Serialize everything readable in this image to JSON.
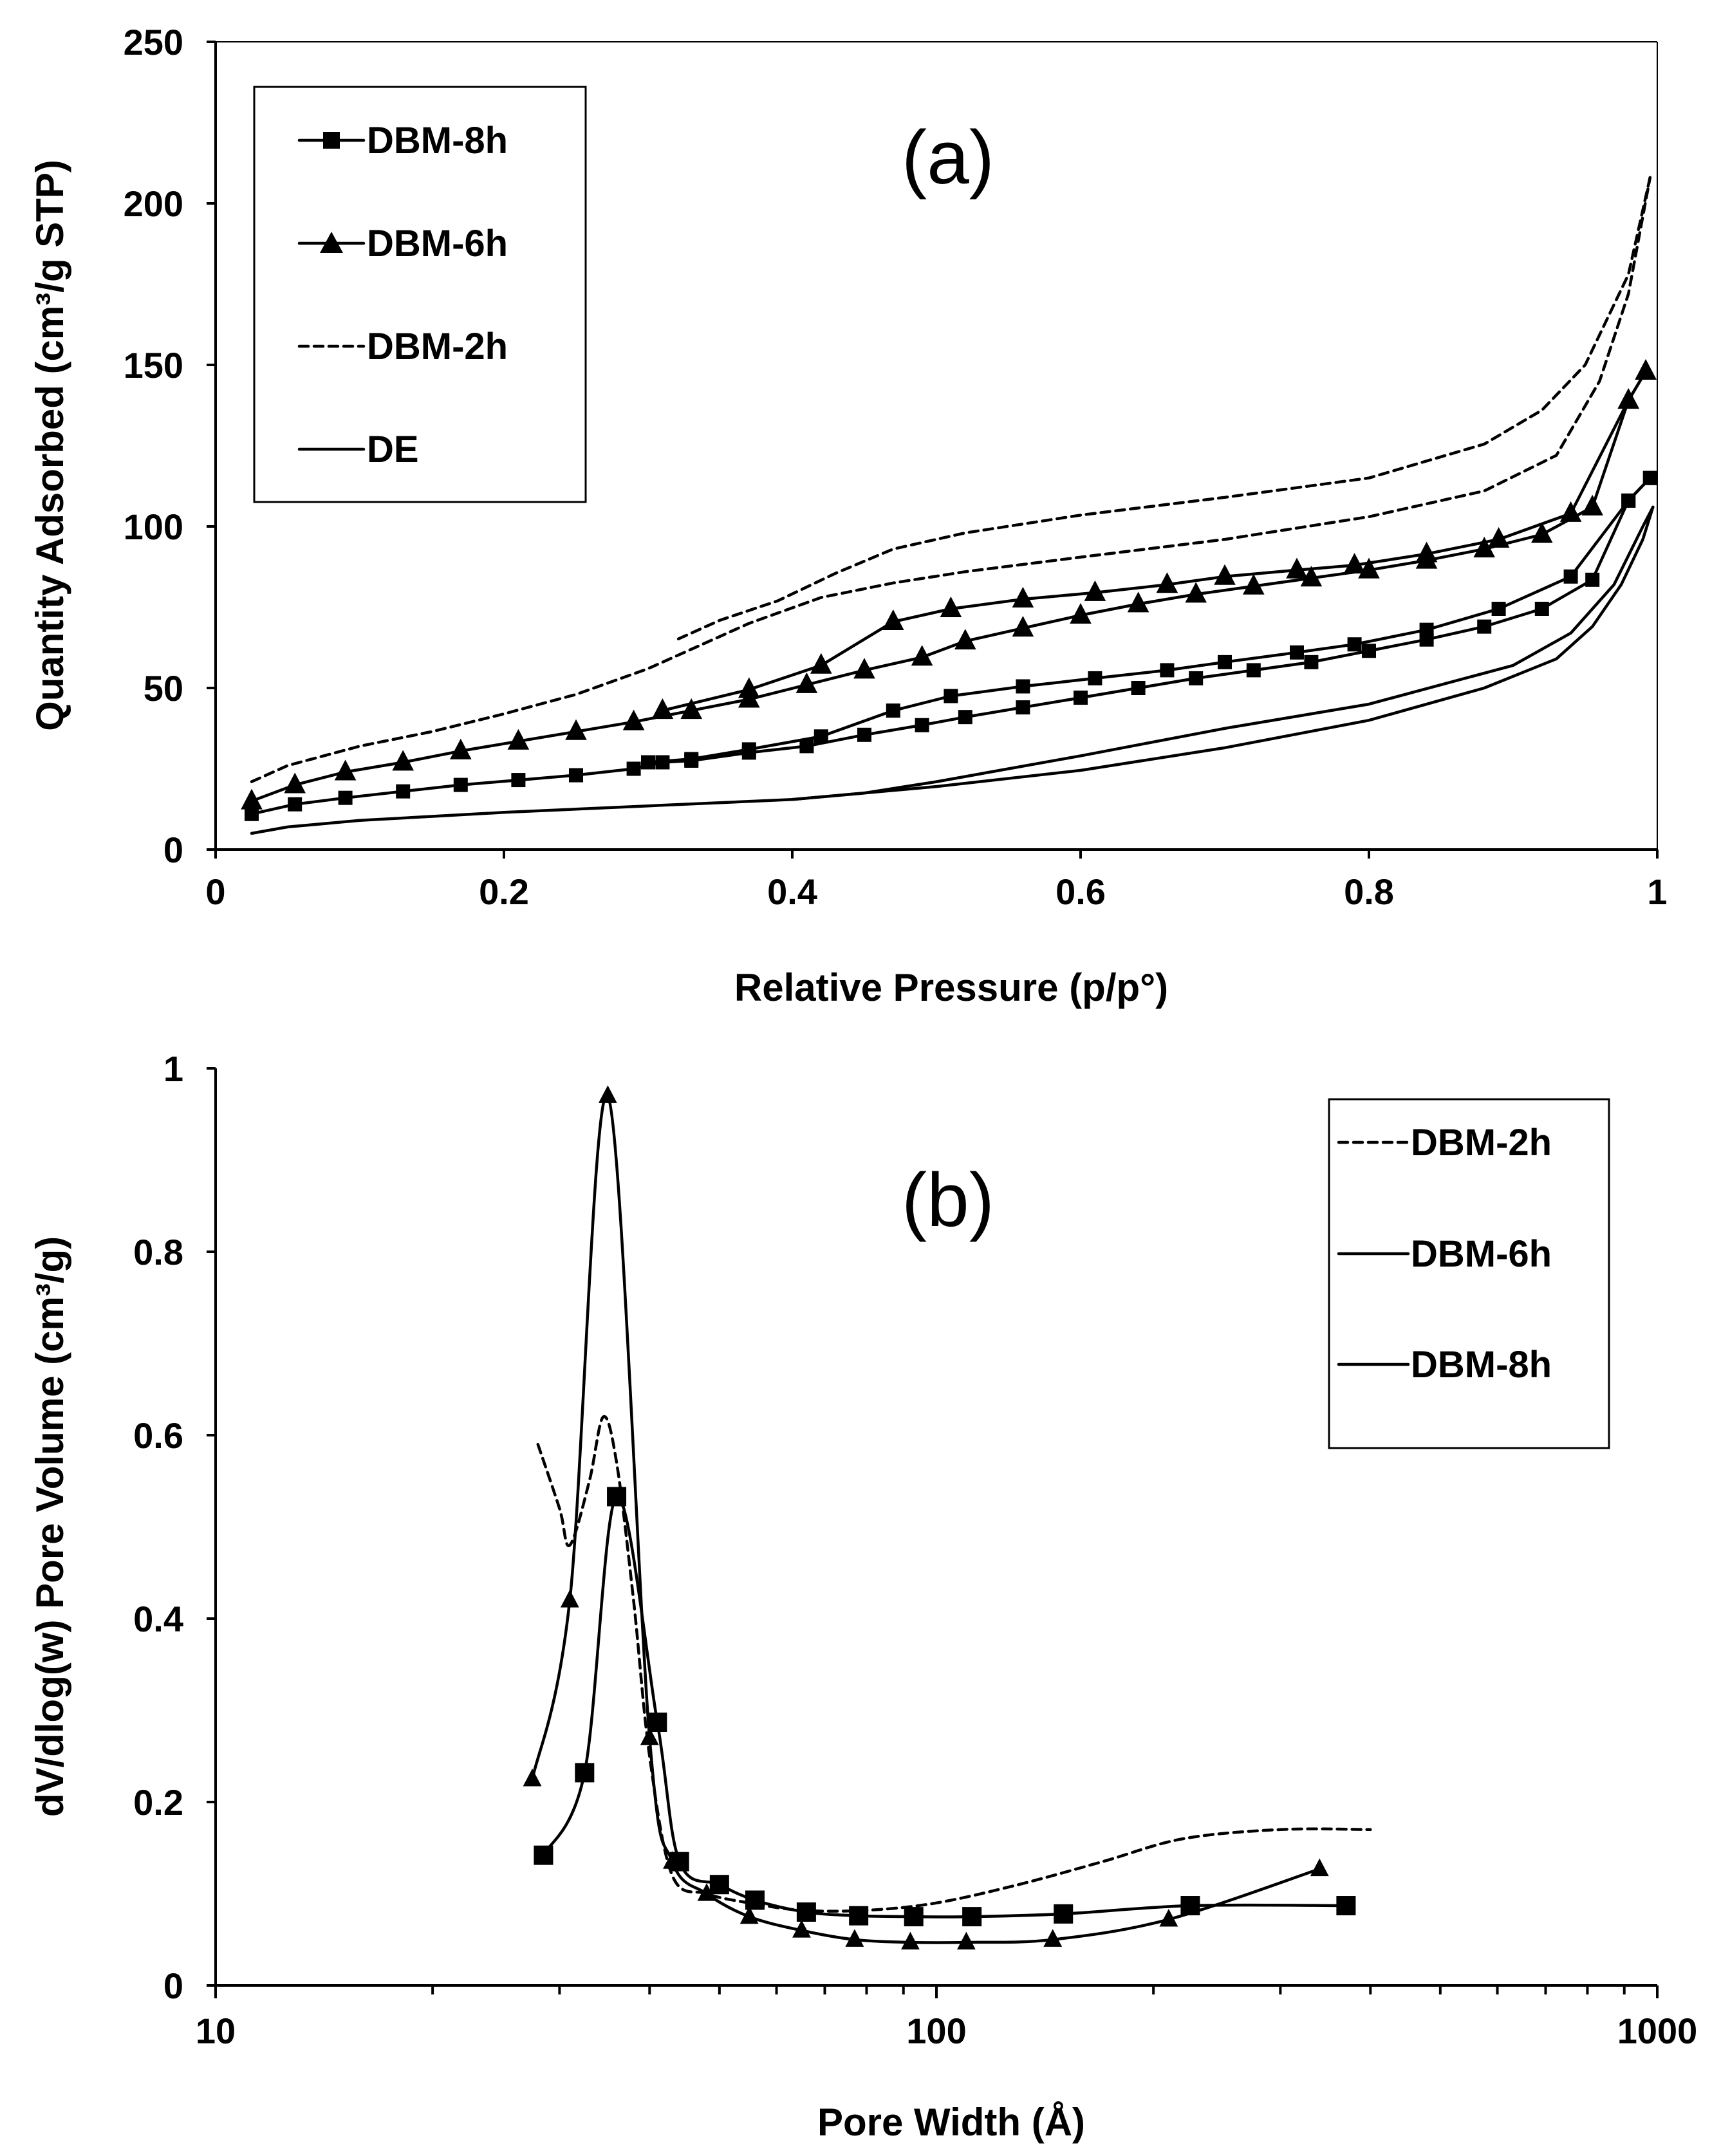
{
  "chart_data": [
    {
      "type": "line",
      "panel_label": "(a)",
      "xlabel": "Relative Pressure (p/p°)",
      "ylabel": "Quantity Adsorbed (cm³/g STP)",
      "xlim": [
        0,
        1
      ],
      "ylim": [
        0,
        250
      ],
      "xticks": [
        0,
        0.2,
        0.4,
        0.6,
        0.8,
        1
      ],
      "xtick_labels": [
        "0",
        "0.2",
        "0.4",
        "0.6",
        "0.8",
        "1"
      ],
      "yticks": [
        0,
        50,
        100,
        150,
        200,
        250
      ],
      "ytick_labels": [
        "0",
        "50",
        "100",
        "150",
        "200",
        "250"
      ],
      "legend": [
        "DBM-8h",
        "DBM-6h",
        "DBM-2h",
        "DE"
      ],
      "series": [
        {
          "name": "DBM-8h",
          "marker": "square",
          "style": "solid",
          "adsorption": [
            [
              0.025,
              11
            ],
            [
              0.055,
              14
            ],
            [
              0.09,
              16
            ],
            [
              0.13,
              18
            ],
            [
              0.17,
              20
            ],
            [
              0.21,
              21.5
            ],
            [
              0.25,
              23
            ],
            [
              0.29,
              25
            ],
            [
              0.31,
              27
            ],
            [
              0.33,
              27.5
            ],
            [
              0.37,
              30
            ],
            [
              0.41,
              32
            ],
            [
              0.45,
              35.5
            ],
            [
              0.49,
              38.5
            ],
            [
              0.52,
              41
            ],
            [
              0.56,
              44
            ],
            [
              0.6,
              47
            ],
            [
              0.64,
              50
            ],
            [
              0.68,
              53
            ],
            [
              0.72,
              55.5
            ],
            [
              0.76,
              58
            ],
            [
              0.8,
              61.5
            ],
            [
              0.84,
              65
            ],
            [
              0.88,
              69
            ],
            [
              0.92,
              74.5
            ],
            [
              0.955,
              83.5
            ],
            [
              0.98,
              108
            ],
            [
              0.995,
              115
            ]
          ],
          "desorption": [
            [
              0.995,
              115
            ],
            [
              0.98,
              108
            ],
            [
              0.94,
              84.5
            ],
            [
              0.89,
              74.5
            ],
            [
              0.84,
              68
            ],
            [
              0.79,
              63.5
            ],
            [
              0.75,
              61
            ],
            [
              0.7,
              58
            ],
            [
              0.66,
              55.5
            ],
            [
              0.61,
              53
            ],
            [
              0.56,
              50.5
            ],
            [
              0.51,
              47.5
            ],
            [
              0.47,
              43
            ],
            [
              0.42,
              35
            ],
            [
              0.37,
              31
            ],
            [
              0.33,
              28
            ],
            [
              0.3,
              27
            ]
          ]
        },
        {
          "name": "DBM-6h",
          "marker": "triangle",
          "style": "solid",
          "adsorption": [
            [
              0.025,
              15
            ],
            [
              0.055,
              20
            ],
            [
              0.09,
              24
            ],
            [
              0.13,
              27
            ],
            [
              0.17,
              30.5
            ],
            [
              0.21,
              33.5
            ],
            [
              0.25,
              36.5
            ],
            [
              0.29,
              39.5
            ],
            [
              0.33,
              43
            ],
            [
              0.37,
              46.5
            ],
            [
              0.41,
              51
            ],
            [
              0.45,
              55.5
            ],
            [
              0.49,
              59.5
            ],
            [
              0.52,
              64.5
            ],
            [
              0.56,
              68.5
            ],
            [
              0.6,
              72.5
            ],
            [
              0.64,
              76
            ],
            [
              0.68,
              79
            ],
            [
              0.72,
              81.5
            ],
            [
              0.76,
              84
            ],
            [
              0.8,
              86.5
            ],
            [
              0.84,
              89.5
            ],
            [
              0.88,
              93
            ],
            [
              0.92,
              97.5
            ],
            [
              0.955,
              106
            ],
            [
              0.98,
              139
            ],
            [
              0.992,
              148
            ]
          ],
          "desorption": [
            [
              0.992,
              148
            ],
            [
              0.98,
              139
            ],
            [
              0.94,
              104
            ],
            [
              0.89,
              96
            ],
            [
              0.84,
              91.5
            ],
            [
              0.79,
              88
            ],
            [
              0.75,
              86.5
            ],
            [
              0.7,
              84.5
            ],
            [
              0.66,
              82
            ],
            [
              0.61,
              79.5
            ],
            [
              0.56,
              77.5
            ],
            [
              0.51,
              74.5
            ],
            [
              0.47,
              70.5
            ],
            [
              0.42,
              57
            ],
            [
              0.37,
              49.5
            ],
            [
              0.31,
              43
            ]
          ]
        },
        {
          "name": "DBM-2h",
          "marker": "none",
          "style": "dashed",
          "adsorption": [
            [
              0.025,
              21
            ],
            [
              0.05,
              26
            ],
            [
              0.1,
              32
            ],
            [
              0.15,
              36.5
            ],
            [
              0.2,
              42
            ],
            [
              0.25,
              48
            ],
            [
              0.3,
              56
            ],
            [
              0.33,
              62
            ],
            [
              0.37,
              70
            ],
            [
              0.42,
              78
            ],
            [
              0.47,
              82.5
            ],
            [
              0.52,
              86
            ],
            [
              0.6,
              90.5
            ],
            [
              0.7,
              96
            ],
            [
              0.8,
              103
            ],
            [
              0.88,
              111
            ],
            [
              0.93,
              122
            ],
            [
              0.96,
              145
            ],
            [
              0.98,
              172
            ],
            [
              0.995,
              208
            ]
          ],
          "desorption": [
            [
              0.995,
              208
            ],
            [
              0.98,
              178
            ],
            [
              0.95,
              150
            ],
            [
              0.92,
              136
            ],
            [
              0.88,
              125.5
            ],
            [
              0.8,
              115
            ],
            [
              0.7,
              109
            ],
            [
              0.6,
              103.5
            ],
            [
              0.52,
              98
            ],
            [
              0.47,
              93
            ],
            [
              0.43,
              85.5
            ],
            [
              0.39,
              77
            ],
            [
              0.35,
              71
            ],
            [
              0.32,
              65
            ]
          ]
        },
        {
          "name": "DE",
          "marker": "none",
          "style": "solid",
          "adsorption": [
            [
              0.025,
              5
            ],
            [
              0.05,
              7
            ],
            [
              0.1,
              9
            ],
            [
              0.2,
              11.5
            ],
            [
              0.3,
              13.5
            ],
            [
              0.4,
              15.5
            ],
            [
              0.5,
              19.5
            ],
            [
              0.6,
              24.5
            ],
            [
              0.7,
              31.5
            ],
            [
              0.8,
              40
            ],
            [
              0.88,
              50
            ],
            [
              0.93,
              59
            ],
            [
              0.955,
              69
            ],
            [
              0.975,
              82
            ],
            [
              0.99,
              96
            ],
            [
              0.997,
              106
            ]
          ],
          "desorption": [
            [
              0.997,
              106
            ],
            [
              0.99,
              100
            ],
            [
              0.97,
              82
            ],
            [
              0.94,
              67
            ],
            [
              0.9,
              57
            ],
            [
              0.8,
              45
            ],
            [
              0.7,
              37.5
            ],
            [
              0.6,
              29
            ],
            [
              0.5,
              21
            ],
            [
              0.45,
              17.5
            ],
            [
              0.4,
              15.5
            ]
          ]
        }
      ]
    },
    {
      "type": "line",
      "panel_label": "(b)",
      "xscale": "log",
      "xlabel": "Pore Width (Å)",
      "ylabel": "dV/dlog(w) Pore Volume (cm³/g)",
      "xlim": [
        10,
        1000
      ],
      "ylim": [
        0,
        1
      ],
      "xtick_labels": [
        "10",
        "100",
        "1000"
      ],
      "yticks": [
        0,
        0.2,
        0.4,
        0.6,
        0.8,
        1
      ],
      "ytick_labels": [
        "0",
        "0.2",
        "0.4",
        "0.6",
        "0.8",
        "1"
      ],
      "legend": [
        "DBM-2h",
        "DBM-6h",
        "DBM-8h"
      ],
      "series": [
        {
          "name": "DBM-2h",
          "marker": "none",
          "style": "dashed",
          "points": [
            [
              28,
              0.59
            ],
            [
              30,
              0.52
            ],
            [
              31,
              0.48
            ],
            [
              33,
              0.55
            ],
            [
              34.5,
              0.62
            ],
            [
              36,
              0.57
            ],
            [
              38,
              0.42
            ],
            [
              40,
              0.25
            ],
            [
              43,
              0.12
            ],
            [
              48,
              0.1
            ],
            [
              55,
              0.09
            ],
            [
              65,
              0.082
            ],
            [
              80,
              0.082
            ],
            [
              100,
              0.09
            ],
            [
              130,
              0.11
            ],
            [
              170,
              0.135
            ],
            [
              220,
              0.16
            ],
            [
              300,
              0.17
            ],
            [
              400,
              0.17
            ]
          ]
        },
        {
          "name": "DBM-6h",
          "marker": "triangle",
          "style": "solid",
          "points": [
            [
              27.5,
              0.225
            ],
            [
              31,
              0.42
            ],
            [
              35,
              0.97
            ],
            [
              40,
              0.27
            ],
            [
              43,
              0.135
            ],
            [
              48,
              0.1
            ],
            [
              55,
              0.075
            ],
            [
              65,
              0.06
            ],
            [
              77,
              0.05
            ],
            [
              92,
              0.047
            ],
            [
              110,
              0.047
            ],
            [
              145,
              0.05
            ],
            [
              210,
              0.072
            ],
            [
              340,
              0.127
            ]
          ]
        },
        {
          "name": "DBM-8h",
          "marker": "square",
          "style": "solid",
          "points": [
            [
              28.5,
              0.142
            ],
            [
              32.5,
              0.232
            ],
            [
              36,
              0.533
            ],
            [
              41,
              0.287
            ],
            [
              44,
              0.135
            ],
            [
              50,
              0.11
            ],
            [
              56,
              0.093
            ],
            [
              66,
              0.08
            ],
            [
              78,
              0.076
            ],
            [
              93,
              0.075
            ],
            [
              112,
              0.075
            ],
            [
              150,
              0.078
            ],
            [
              225,
              0.087
            ],
            [
              370,
              0.087
            ]
          ]
        }
      ]
    }
  ]
}
